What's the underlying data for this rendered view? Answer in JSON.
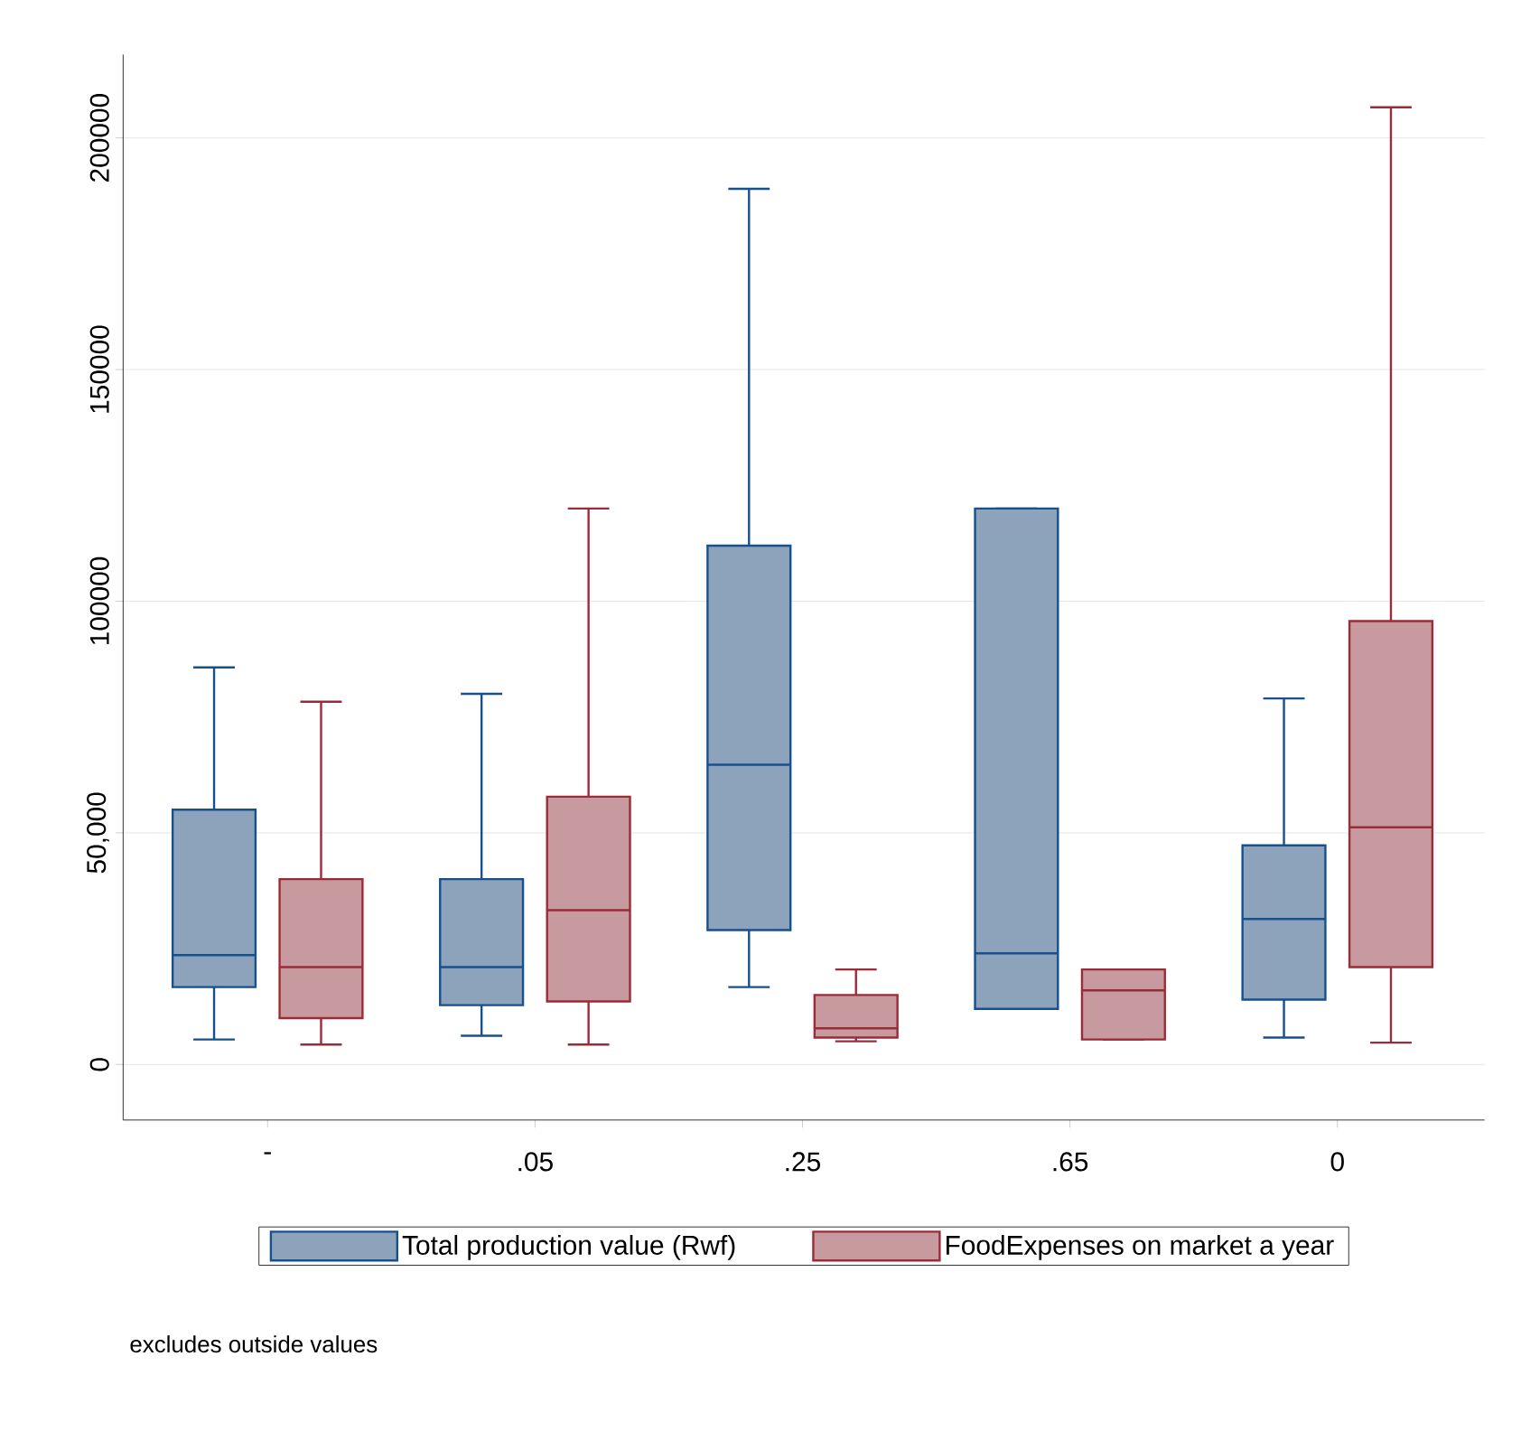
{
  "chart_data": {
    "type": "box",
    "categories": [
      "-",
      ".05",
      ".25",
      ".65",
      "0"
    ],
    "series": [
      {
        "name": "Total production value (Rwf)",
        "color": "#8ca3bb",
        "boxes": [
          {
            "low": 5400,
            "q1": 16700,
            "median": 23600,
            "q3": 55000,
            "high": 85700
          },
          {
            "low": 6200,
            "q1": 12800,
            "median": 21000,
            "q3": 40000,
            "high": 80000
          },
          {
            "low": 16700,
            "q1": 29000,
            "median": 64700,
            "q3": 112000,
            "high": 189000
          },
          {
            "low": 12000,
            "q1": 12000,
            "median": 24000,
            "q3": 120000,
            "high": 120000
          },
          {
            "low": 5800,
            "q1": 14000,
            "median": 31400,
            "q3": 47300,
            "high": 79000
          }
        ]
      },
      {
        "name": "FoodExpenses on market a year",
        "color": "#c79a9f",
        "boxes": [
          {
            "low": 4300,
            "q1": 10000,
            "median": 21000,
            "q3": 40000,
            "high": 78300
          },
          {
            "low": 4300,
            "q1": 13600,
            "median": 33300,
            "q3": 57800,
            "high": 120000
          },
          {
            "low": 5000,
            "q1": 5800,
            "median": 7800,
            "q3": 15000,
            "high": 20500
          },
          {
            "low": 5400,
            "q1": 5400,
            "median": 16000,
            "q3": 20500,
            "high": 20500
          },
          {
            "low": 4700,
            "q1": 21000,
            "median": 51200,
            "q3": 95700,
            "high": 206600
          }
        ]
      }
    ],
    "ylim": [
      -12000,
      218000
    ],
    "yticks": [
      0,
      {
        "value": 50000,
        "label": "50,000"
      },
      100000,
      150000,
      200000
    ],
    "grid": "y",
    "legend": "bottom",
    "annotations": [
      "excludes outside values"
    ]
  }
}
